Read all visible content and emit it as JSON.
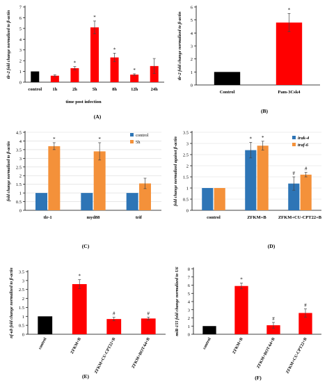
{
  "colors": {
    "control": "#000000",
    "treated": "#ff0000",
    "blue": "#2e75b6",
    "orange": "#f4913a"
  },
  "chart_data": [
    {
      "panel": "(A)",
      "type": "bar",
      "ylabel": "tlr-2 fold change normalized to β-actin",
      "xlabel": "time post infection",
      "ylim": [
        0,
        7
      ],
      "yticks": [
        0,
        1,
        2,
        3,
        4,
        5,
        6,
        7
      ],
      "categories": [
        "control",
        "1h",
        "2h",
        "5h",
        "8h",
        "12h",
        "24h"
      ],
      "values": [
        1.0,
        0.6,
        1.3,
        5.1,
        2.3,
        0.7,
        1.5
      ],
      "errors": [
        0.0,
        0.08,
        0.15,
        0.6,
        0.4,
        0.08,
        0.7
      ],
      "marks": [
        "",
        "",
        "*",
        "*",
        "*",
        "*",
        ""
      ],
      "bar_colors": [
        "control",
        "treated",
        "treated",
        "treated",
        "treated",
        "treated",
        "treated"
      ],
      "grid": false
    },
    {
      "panel": "(B)",
      "type": "bar",
      "ylabel": "tlr-2 fold change normalized to β-actin",
      "ylim": [
        0,
        6
      ],
      "yticks": [
        0,
        1,
        2,
        3,
        4,
        5,
        6
      ],
      "categories": [
        "Control",
        "Pam-3Csk4"
      ],
      "values": [
        1.0,
        4.8
      ],
      "errors": [
        0.0,
        0.7
      ],
      "marks": [
        "",
        "*"
      ],
      "bar_colors": [
        "control",
        "treated"
      ],
      "grid": false
    },
    {
      "panel": "(C)",
      "type": "bar",
      "ylabel": "fold change normalized to β-actin",
      "ylim": [
        0,
        4.5
      ],
      "yticks": [
        0,
        0.5,
        1,
        1.5,
        2,
        2.5,
        3,
        3.5,
        4,
        4.5
      ],
      "categories": [
        "tlr-1",
        "myd88",
        "trif"
      ],
      "series": [
        {
          "name": "control",
          "color": "blue",
          "values": [
            1.0,
            1.0,
            1.0
          ],
          "errors": [
            0,
            0,
            0
          ],
          "marks": [
            "",
            "",
            ""
          ]
        },
        {
          "name": "5h",
          "color": "orange",
          "values": [
            3.7,
            3.4,
            1.55
          ],
          "errors": [
            0.2,
            0.5,
            0.3
          ],
          "marks": [
            "*",
            "*",
            ""
          ]
        }
      ],
      "legend": "top-right",
      "grid": true
    },
    {
      "panel": "(D)",
      "type": "bar",
      "ylabel": "fold change normalized against β-actin",
      "ylim": [
        0,
        3.5
      ],
      "yticks": [
        0,
        0.5,
        1,
        1.5,
        2,
        2.5,
        3,
        3.5
      ],
      "categories": [
        "control",
        "ZFKM+B",
        "ZFKM+CU-CPT22+B"
      ],
      "series": [
        {
          "name": "irak-4",
          "color": "blue",
          "values": [
            1.0,
            2.7,
            1.2
          ],
          "errors": [
            0,
            0.35,
            0.3
          ],
          "marks": [
            "",
            "*",
            "#"
          ]
        },
        {
          "name": "traf-6",
          "color": "orange",
          "values": [
            1.0,
            2.9,
            1.6
          ],
          "errors": [
            0,
            0.2,
            0.1
          ],
          "marks": [
            "",
            "*",
            "#"
          ]
        }
      ],
      "legend": "top-right",
      "grid": true
    },
    {
      "panel": "(E)",
      "type": "bar",
      "ylabel": "nf-κb fold change normalized to β-actin",
      "ylim": [
        0,
        3.5
      ],
      "yticks": [
        0,
        0.5,
        1,
        1.5,
        2,
        2.5,
        3,
        3.5
      ],
      "categories": [
        "control",
        "ZFKM+B",
        "ZFKM+CU-CPT22+B",
        "ZFKM+BOT-64+B"
      ],
      "values": [
        1.0,
        2.8,
        0.85,
        0.88
      ],
      "errors": [
        0.0,
        0.25,
        0.1,
        0.08
      ],
      "marks": [
        "",
        "*",
        "#",
        "#"
      ],
      "bar_colors": [
        "control",
        "treated",
        "treated",
        "treated"
      ],
      "grid": false
    },
    {
      "panel": "(F)",
      "type": "bar",
      "ylabel": "miR-155 fold change normalized to U6",
      "ylim": [
        0,
        8
      ],
      "yticks": [
        0,
        1,
        2,
        3,
        4,
        5,
        6,
        7,
        8
      ],
      "categories": [
        "control",
        "ZFKM+B",
        "ZFKM+BOT-64+B",
        "ZFKM+CU-CPT22+B"
      ],
      "values": [
        1.0,
        5.9,
        1.1,
        2.6
      ],
      "errors": [
        0.0,
        0.35,
        0.35,
        0.5
      ],
      "marks": [
        "",
        "*",
        "#",
        "#"
      ],
      "bar_colors": [
        "control",
        "treated",
        "treated",
        "treated"
      ],
      "grid": false
    }
  ]
}
